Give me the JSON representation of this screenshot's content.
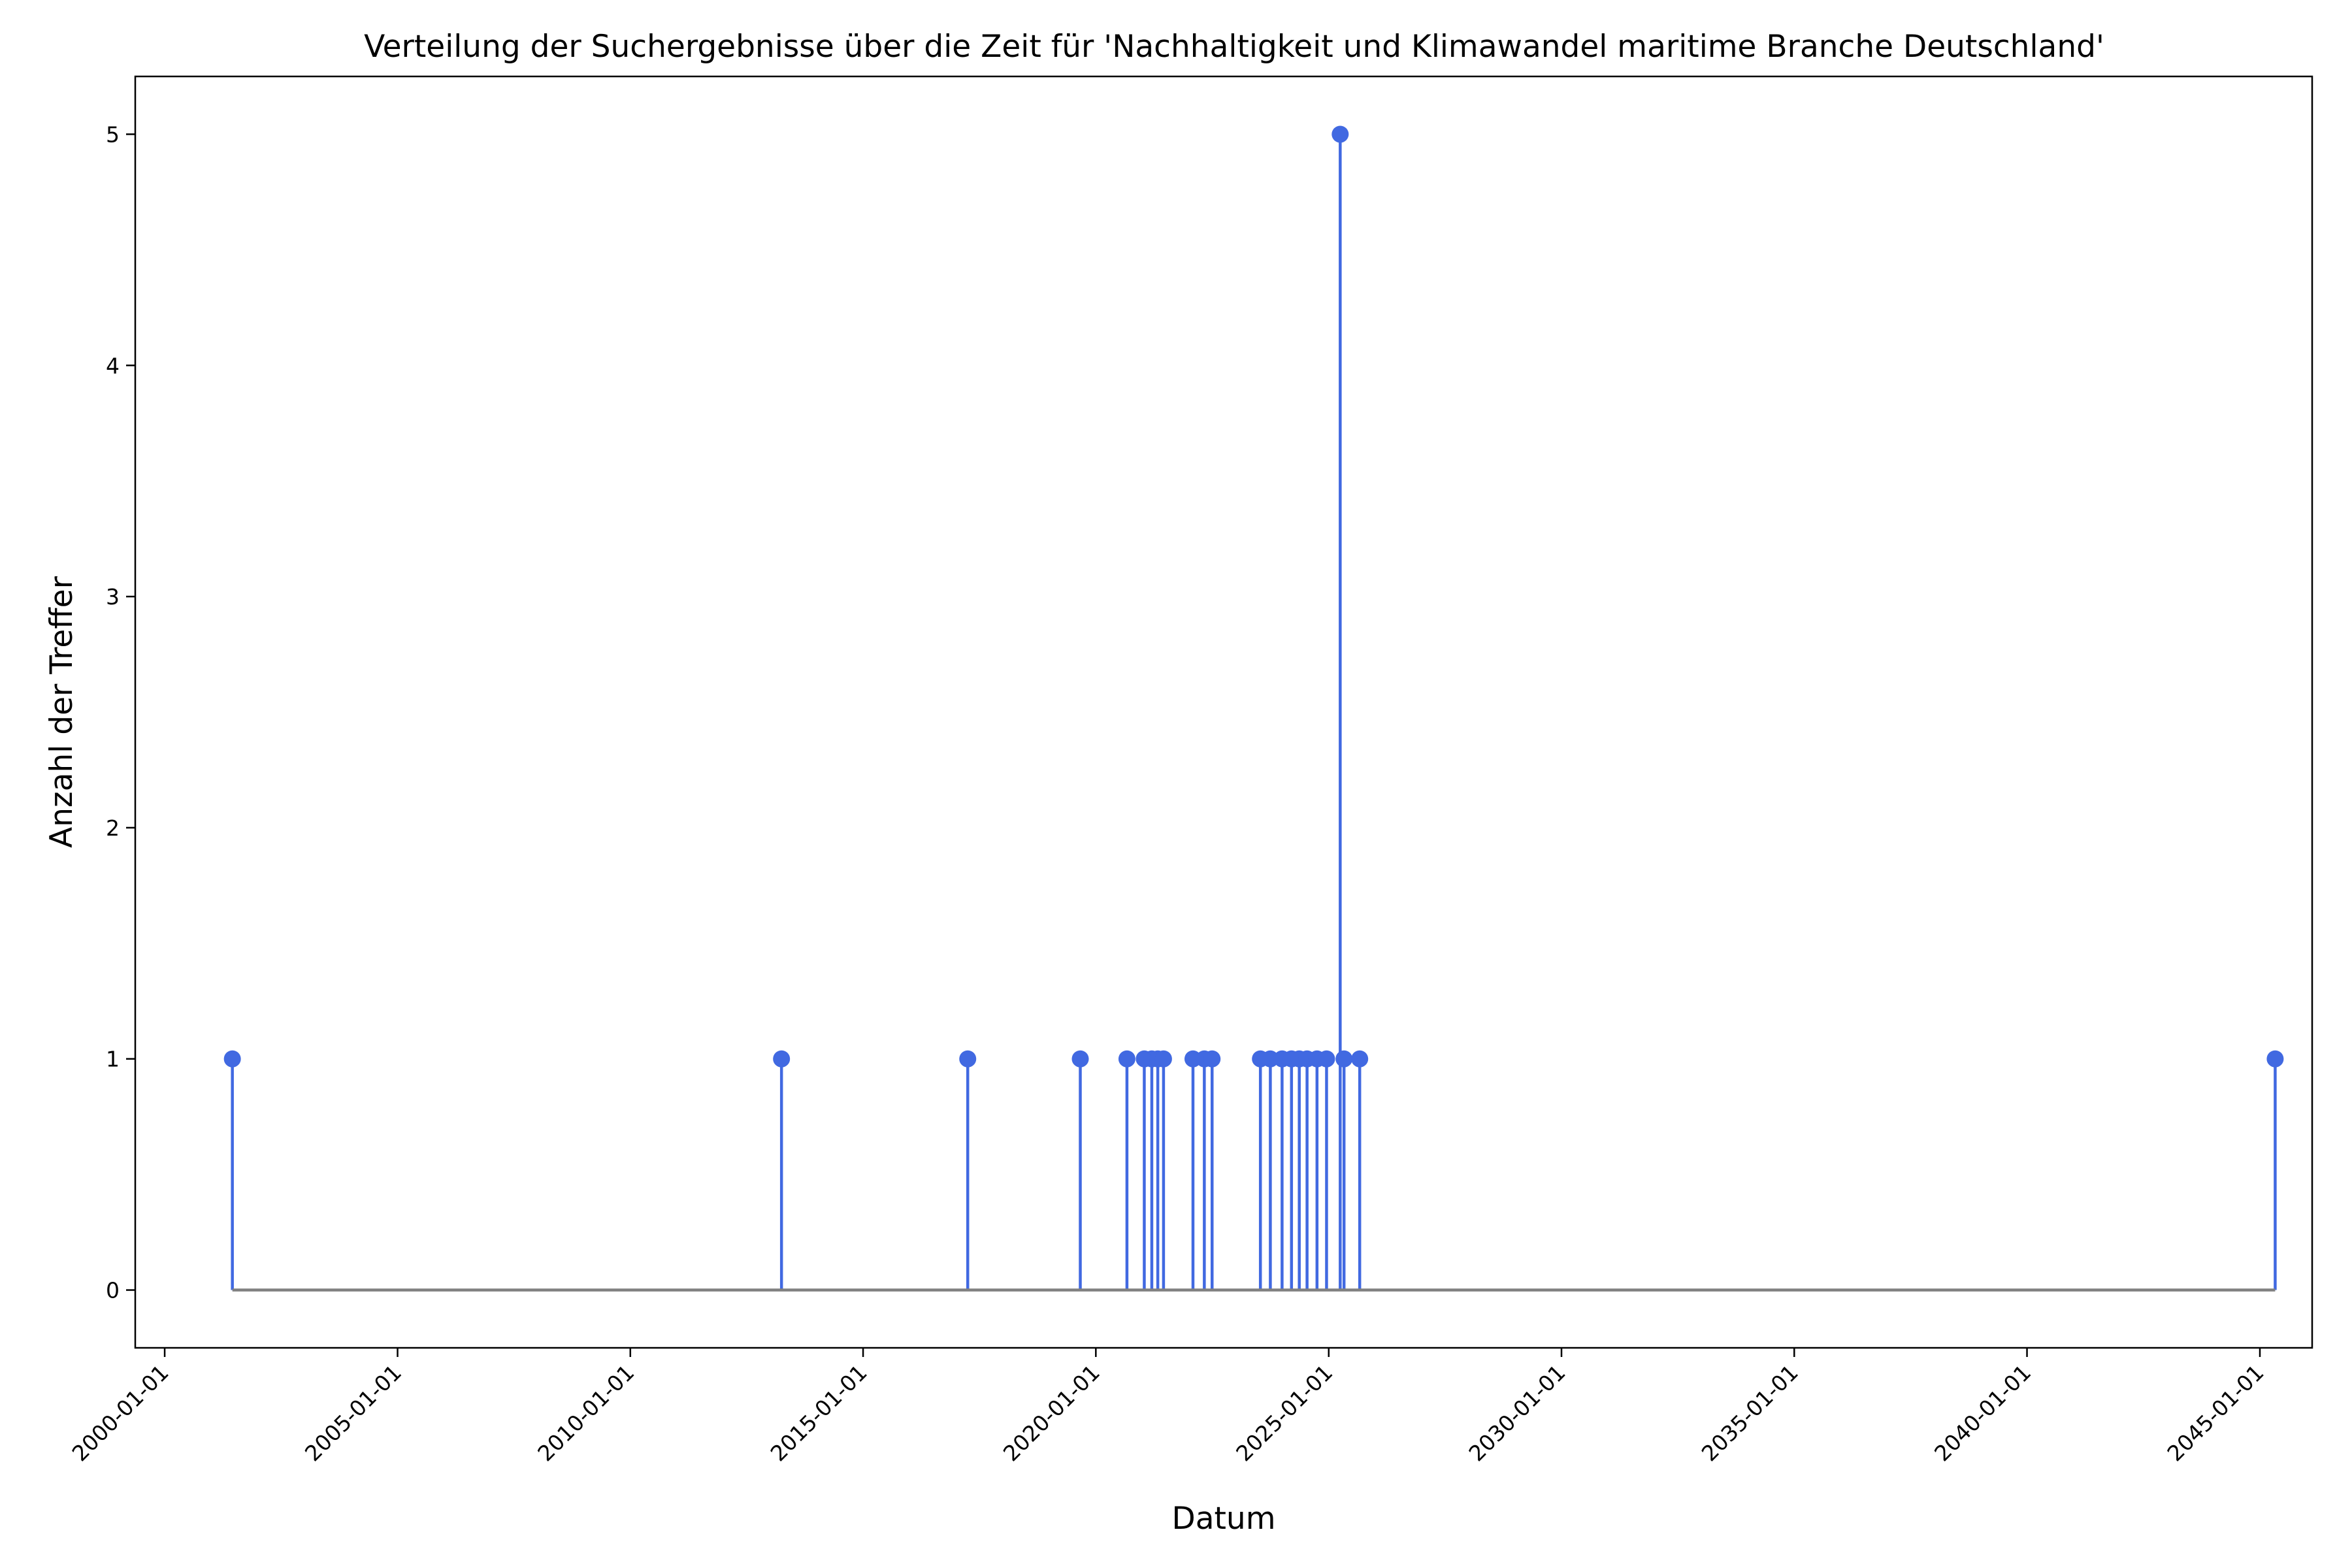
{
  "chart_data": {
    "type": "stem",
    "title": "Verteilung der Suchergebnisse über die Zeit für 'Nachhaltigkeit und Klimawandel maritime Branche Deutschland'",
    "xlabel": "Datum",
    "ylabel": "Anzahl der Treffer",
    "x_ticks": [
      "2000-01-01",
      "2005-01-01",
      "2010-01-01",
      "2015-01-01",
      "2020-01-01",
      "2025-01-01",
      "2030-01-01",
      "2035-01-01",
      "2040-01-01",
      "2045-01-01"
    ],
    "y_ticks": [
      0,
      1,
      2,
      3,
      4,
      5
    ],
    "xlim": [
      "1999-05-15",
      "2046-02-15"
    ],
    "ylim": [
      -0.25,
      5.25
    ],
    "grid": false,
    "colors": {
      "stem": "#4169E1",
      "baseline": "#808080"
    },
    "points": [
      {
        "date": "2001-06-15",
        "count": 1
      },
      {
        "date": "2013-04-01",
        "count": 1
      },
      {
        "date": "2017-04-01",
        "count": 1
      },
      {
        "date": "2019-09-01",
        "count": 1
      },
      {
        "date": "2020-09-01",
        "count": 1
      },
      {
        "date": "2021-01-15",
        "count": 1
      },
      {
        "date": "2021-03-15",
        "count": 1
      },
      {
        "date": "2021-05-01",
        "count": 1
      },
      {
        "date": "2021-06-15",
        "count": 1
      },
      {
        "date": "2022-02-01",
        "count": 1
      },
      {
        "date": "2022-05-01",
        "count": 1
      },
      {
        "date": "2022-07-01",
        "count": 1
      },
      {
        "date": "2023-07-15",
        "count": 1
      },
      {
        "date": "2023-10-01",
        "count": 1
      },
      {
        "date": "2024-01-01",
        "count": 1
      },
      {
        "date": "2024-03-15",
        "count": 1
      },
      {
        "date": "2024-05-15",
        "count": 1
      },
      {
        "date": "2024-07-15",
        "count": 1
      },
      {
        "date": "2024-10-01",
        "count": 1
      },
      {
        "date": "2024-12-15",
        "count": 1
      },
      {
        "date": "2025-04-01",
        "count": 5
      },
      {
        "date": "2025-05-01",
        "count": 1
      },
      {
        "date": "2025-09-01",
        "count": 1
      },
      {
        "date": "2045-05-01",
        "count": 1
      }
    ]
  }
}
